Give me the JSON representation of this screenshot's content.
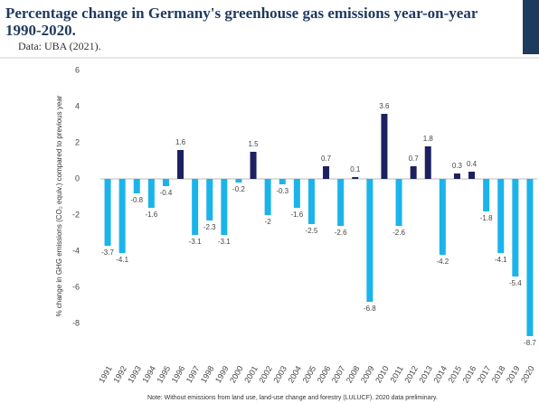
{
  "chart_data": {
    "type": "bar",
    "title": "Percentage change in Germany's greenhouse gas emissions year-on-year",
    "title_line2": "1990-2020.",
    "subtitle": "Data: UBA (2021).",
    "y_label": "% change in GHG emissions (CO₂ equiv.) compared to previous year",
    "note": "Note: Without emissions from land use, land-use change and forestry (LULUCF). 2020 data preliminary.",
    "categories": [
      "1991",
      "1992",
      "1993",
      "1994",
      "1995",
      "1996",
      "1997",
      "1998",
      "1999",
      "2000",
      "2001",
      "2002",
      "2003",
      "2004",
      "2005",
      "2006",
      "2007",
      "2008",
      "2009",
      "2010",
      "2011",
      "2012",
      "2013",
      "2014",
      "2015",
      "2016",
      "2017",
      "2018",
      "2019",
      "2020"
    ],
    "values": [
      -3.7,
      -4.1,
      -0.8,
      -1.6,
      -0.4,
      1.6,
      -3.1,
      -2.3,
      -3.1,
      -0.2,
      1.5,
      -2.0,
      -0.3,
      -1.6,
      -2.5,
      0.7,
      -2.6,
      0.1,
      -6.8,
      3.6,
      -2.6,
      0.7,
      1.8,
      -4.2,
      0.3,
      0.4,
      -1.8,
      -4.1,
      -5.4,
      -8.7
    ],
    "color_positive": "#1b2160",
    "color_negative": "#1ab4ea",
    "ylim": [
      -10,
      6
    ],
    "yticks": [
      6,
      4,
      2,
      0,
      -2,
      -4,
      -6,
      -8
    ]
  }
}
